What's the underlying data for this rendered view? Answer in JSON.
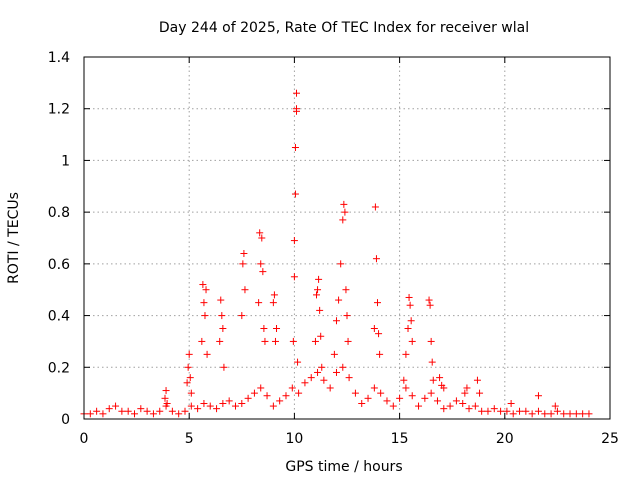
{
  "chart_data": {
    "type": "scatter",
    "title": "Day 244 of 2025, Rate Of TEC Index for receiver wlal",
    "xlabel": "GPS time / hours",
    "ylabel": "ROTI / TECUs",
    "xlim": [
      0,
      25
    ],
    "ylim": [
      0,
      1.4
    ],
    "x_ticks": [
      0,
      5,
      10,
      15,
      20,
      25
    ],
    "x_tick_labels": [
      "0",
      "5",
      "10",
      "15",
      "20",
      "25"
    ],
    "y_ticks": [
      0,
      0.2,
      0.4,
      0.6,
      0.8,
      1.0,
      1.2,
      1.4
    ],
    "y_tick_labels": [
      "0",
      "0.2",
      "0.4",
      "0.6",
      "0.8",
      "1",
      "1.2",
      "1.4"
    ],
    "grid": true,
    "marker": "plus",
    "color": "#ff0000",
    "series": [
      {
        "x": [
          0.0,
          0.3,
          0.6,
          0.9,
          1.2,
          1.5,
          1.8,
          2.1,
          2.4,
          2.7,
          3.0,
          3.3,
          3.6,
          3.9,
          4.2,
          4.5,
          4.8,
          5.1,
          5.4,
          5.7,
          6.0,
          6.3,
          6.6,
          6.9,
          7.2,
          7.5,
          7.8,
          8.1,
          8.4,
          8.7,
          9.0,
          9.3,
          9.6,
          9.9,
          10.2,
          10.5,
          10.8,
          11.1,
          11.4,
          11.7,
          12.0,
          12.3,
          12.6,
          12.9,
          13.2,
          13.5,
          13.8,
          14.1,
          14.4,
          14.7,
          15.0,
          15.3,
          15.6,
          15.9,
          16.2,
          16.5,
          16.8,
          17.1,
          17.4,
          17.7,
          18.0,
          18.3,
          18.6,
          18.9,
          19.2,
          19.5,
          19.8,
          20.1,
          20.4,
          20.7,
          21.0,
          21.3,
          21.6,
          21.9,
          22.2,
          22.5,
          22.8,
          23.1,
          23.4,
          23.7,
          24.0,
          3.85,
          3.9,
          3.95,
          4.9,
          4.95,
          5.0,
          5.05,
          5.1,
          5.6,
          5.65,
          5.7,
          5.75,
          5.8,
          5.85,
          6.45,
          6.5,
          6.55,
          6.6,
          6.65,
          7.5,
          7.55,
          7.6,
          7.65,
          8.3,
          8.35,
          8.4,
          8.45,
          8.5,
          8.55,
          8.6,
          9.0,
          9.05,
          9.1,
          9.15,
          9.95,
          10.0,
          10.0,
          10.05,
          10.05,
          10.1,
          10.1,
          10.1,
          10.15,
          11.0,
          11.05,
          11.1,
          11.15,
          11.2,
          11.25,
          11.3,
          11.9,
          12.0,
          12.1,
          12.2,
          12.3,
          12.35,
          12.4,
          12.45,
          12.5,
          12.55,
          13.8,
          13.85,
          13.9,
          13.95,
          14.0,
          14.05,
          15.2,
          15.3,
          15.4,
          15.45,
          15.5,
          15.55,
          15.6,
          16.4,
          16.45,
          16.5,
          16.55,
          16.6,
          16.9,
          17.0,
          17.1,
          18.1,
          18.2,
          18.7,
          18.8,
          20.3,
          21.6,
          22.4
        ],
        "y": [
          0.02,
          0.02,
          0.03,
          0.02,
          0.04,
          0.05,
          0.03,
          0.03,
          0.02,
          0.04,
          0.03,
          0.02,
          0.03,
          0.05,
          0.03,
          0.02,
          0.03,
          0.05,
          0.04,
          0.06,
          0.05,
          0.04,
          0.06,
          0.07,
          0.05,
          0.06,
          0.08,
          0.1,
          0.12,
          0.09,
          0.05,
          0.07,
          0.09,
          0.12,
          0.1,
          0.14,
          0.16,
          0.18,
          0.15,
          0.12,
          0.18,
          0.2,
          0.16,
          0.1,
          0.06,
          0.08,
          0.12,
          0.1,
          0.07,
          0.05,
          0.08,
          0.12,
          0.09,
          0.05,
          0.08,
          0.1,
          0.07,
          0.04,
          0.05,
          0.07,
          0.06,
          0.04,
          0.05,
          0.03,
          0.03,
          0.04,
          0.03,
          0.03,
          0.02,
          0.03,
          0.03,
          0.02,
          0.03,
          0.02,
          0.02,
          0.03,
          0.02,
          0.02,
          0.02,
          0.02,
          0.02,
          0.08,
          0.11,
          0.06,
          0.14,
          0.2,
          0.25,
          0.16,
          0.1,
          0.3,
          0.52,
          0.45,
          0.4,
          0.5,
          0.25,
          0.3,
          0.46,
          0.4,
          0.35,
          0.2,
          0.4,
          0.6,
          0.64,
          0.5,
          0.45,
          0.72,
          0.6,
          0.7,
          0.57,
          0.35,
          0.3,
          0.45,
          0.48,
          0.3,
          0.35,
          0.3,
          0.55,
          0.69,
          0.87,
          1.05,
          1.2,
          1.19,
          1.26,
          0.22,
          0.3,
          0.48,
          0.5,
          0.54,
          0.42,
          0.32,
          0.2,
          0.25,
          0.38,
          0.46,
          0.6,
          0.77,
          0.83,
          0.8,
          0.5,
          0.4,
          0.3,
          0.35,
          0.82,
          0.62,
          0.45,
          0.33,
          0.25,
          0.15,
          0.25,
          0.35,
          0.47,
          0.44,
          0.38,
          0.3,
          0.46,
          0.44,
          0.3,
          0.22,
          0.15,
          0.16,
          0.13,
          0.12,
          0.1,
          0.12,
          0.15,
          0.1,
          0.06,
          0.09,
          0.05
        ]
      }
    ]
  }
}
